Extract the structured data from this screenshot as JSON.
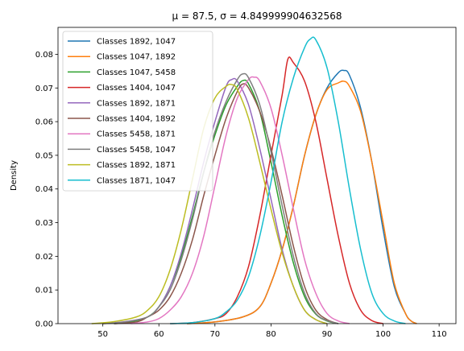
{
  "chart_data": {
    "type": "line",
    "title": "μ = 87.5, σ = 4.849999904632568",
    "xlabel": "",
    "ylabel": "Density",
    "xlim": [
      42,
      113
    ],
    "ylim": [
      0,
      0.088
    ],
    "xticks": [
      50,
      60,
      70,
      80,
      90,
      100,
      110
    ],
    "yticks": [
      0.0,
      0.01,
      0.02,
      0.03,
      0.04,
      0.05,
      0.06,
      0.07,
      0.08
    ],
    "ytick_labels": [
      "0.00",
      "0.01",
      "0.02",
      "0.03",
      "0.04",
      "0.05",
      "0.06",
      "0.07",
      "0.08"
    ],
    "grid": false,
    "legend_position": "top-left",
    "series": [
      {
        "name": "Classes 1892, 1047",
        "color": "#1f77b4",
        "points": [
          [
            65,
            0.0
          ],
          [
            70,
            0.0005
          ],
          [
            75,
            0.002
          ],
          [
            78,
            0.005
          ],
          [
            80,
            0.012
          ],
          [
            82,
            0.022
          ],
          [
            84,
            0.035
          ],
          [
            86,
            0.05
          ],
          [
            88,
            0.062
          ],
          [
            90,
            0.07
          ],
          [
            92,
            0.0745
          ],
          [
            93,
            0.0752
          ],
          [
            94,
            0.0738
          ],
          [
            96,
            0.064
          ],
          [
            98,
            0.048
          ],
          [
            100,
            0.028
          ],
          [
            102,
            0.011
          ],
          [
            104,
            0.003
          ],
          [
            105,
            0.0008
          ],
          [
            106,
            0.0
          ]
        ]
      },
      {
        "name": "Classes 1047, 1892",
        "color": "#ff7f0e",
        "points": [
          [
            65,
            0.0
          ],
          [
            70,
            0.0005
          ],
          [
            75,
            0.002
          ],
          [
            78,
            0.005
          ],
          [
            80,
            0.012
          ],
          [
            82,
            0.022
          ],
          [
            84,
            0.035
          ],
          [
            86,
            0.05
          ],
          [
            88,
            0.062
          ],
          [
            90,
            0.0695
          ],
          [
            92,
            0.0715
          ],
          [
            93,
            0.072
          ],
          [
            94,
            0.0705
          ],
          [
            96,
            0.063
          ],
          [
            98,
            0.048
          ],
          [
            100,
            0.03
          ],
          [
            102,
            0.012
          ],
          [
            104,
            0.003
          ],
          [
            105,
            0.0008
          ],
          [
            106,
            0.0
          ]
        ]
      },
      {
        "name": "Classes 1047, 5458",
        "color": "#2ca02c",
        "points": [
          [
            52,
            0.0
          ],
          [
            55,
            0.0005
          ],
          [
            58,
            0.002
          ],
          [
            60,
            0.005
          ],
          [
            62,
            0.011
          ],
          [
            64,
            0.02
          ],
          [
            66,
            0.032
          ],
          [
            68,
            0.045
          ],
          [
            70,
            0.056
          ],
          [
            72,
            0.065
          ],
          [
            74,
            0.0705
          ],
          [
            75,
            0.0722
          ],
          [
            76,
            0.0712
          ],
          [
            78,
            0.063
          ],
          [
            80,
            0.048
          ],
          [
            82,
            0.032
          ],
          [
            84,
            0.018
          ],
          [
            86,
            0.008
          ],
          [
            88,
            0.0028
          ],
          [
            90,
            0.0008
          ],
          [
            92,
            0.0
          ]
        ]
      },
      {
        "name": "Classes 1404, 1047",
        "color": "#d62728",
        "points": [
          [
            62,
            0.0
          ],
          [
            66,
            0.0003
          ],
          [
            70,
            0.0015
          ],
          [
            72,
            0.003
          ],
          [
            74,
            0.008
          ],
          [
            76,
            0.017
          ],
          [
            78,
            0.032
          ],
          [
            80,
            0.05
          ],
          [
            82,
            0.068
          ],
          [
            83,
            0.0785
          ],
          [
            84,
            0.0775
          ],
          [
            86,
            0.072
          ],
          [
            88,
            0.06
          ],
          [
            90,
            0.043
          ],
          [
            92,
            0.026
          ],
          [
            94,
            0.012
          ],
          [
            96,
            0.004
          ],
          [
            98,
            0.0009
          ],
          [
            100,
            0.0
          ]
        ]
      },
      {
        "name": "Classes 1892, 1871",
        "color": "#9467bd",
        "points": [
          [
            50,
            0.0
          ],
          [
            54,
            0.0006
          ],
          [
            58,
            0.002
          ],
          [
            60,
            0.005
          ],
          [
            62,
            0.011
          ],
          [
            64,
            0.021
          ],
          [
            66,
            0.034
          ],
          [
            68,
            0.048
          ],
          [
            70,
            0.06
          ],
          [
            72,
            0.0705
          ],
          [
            73,
            0.0725
          ],
          [
            74,
            0.072
          ],
          [
            76,
            0.065
          ],
          [
            78,
            0.052
          ],
          [
            80,
            0.037
          ],
          [
            82,
            0.022
          ],
          [
            84,
            0.011
          ],
          [
            86,
            0.004
          ],
          [
            88,
            0.0012
          ],
          [
            90,
            0.0
          ]
        ]
      },
      {
        "name": "Classes 1404, 1892",
        "color": "#8c564b",
        "points": [
          [
            52,
            0.0
          ],
          [
            56,
            0.0005
          ],
          [
            58,
            0.002
          ],
          [
            60,
            0.004
          ],
          [
            62,
            0.008
          ],
          [
            64,
            0.015
          ],
          [
            66,
            0.025
          ],
          [
            68,
            0.038
          ],
          [
            70,
            0.05
          ],
          [
            72,
            0.061
          ],
          [
            74,
            0.069
          ],
          [
            75,
            0.0712
          ],
          [
            76,
            0.07
          ],
          [
            78,
            0.063
          ],
          [
            80,
            0.052
          ],
          [
            82,
            0.038
          ],
          [
            84,
            0.023
          ],
          [
            86,
            0.011
          ],
          [
            88,
            0.004
          ],
          [
            90,
            0.0012
          ],
          [
            92,
            0.0
          ]
        ]
      },
      {
        "name": "Classes 5458, 1871",
        "color": "#e377c2",
        "points": [
          [
            55,
            0.0
          ],
          [
            58,
            0.0005
          ],
          [
            60,
            0.0015
          ],
          [
            62,
            0.004
          ],
          [
            64,
            0.008
          ],
          [
            66,
            0.015
          ],
          [
            68,
            0.026
          ],
          [
            70,
            0.041
          ],
          [
            72,
            0.056
          ],
          [
            74,
            0.067
          ],
          [
            76,
            0.0725
          ],
          [
            77,
            0.0732
          ],
          [
            78,
            0.072
          ],
          [
            80,
            0.064
          ],
          [
            82,
            0.05
          ],
          [
            84,
            0.034
          ],
          [
            86,
            0.019
          ],
          [
            88,
            0.009
          ],
          [
            90,
            0.003
          ],
          [
            92,
            0.0008
          ],
          [
            94,
            0.0
          ]
        ]
      },
      {
        "name": "Classes 5458, 1047",
        "color": "#7f7f7f",
        "points": [
          [
            50,
            0.0
          ],
          [
            54,
            0.0005
          ],
          [
            58,
            0.002
          ],
          [
            60,
            0.005
          ],
          [
            62,
            0.01
          ],
          [
            64,
            0.019
          ],
          [
            66,
            0.031
          ],
          [
            68,
            0.045
          ],
          [
            70,
            0.057
          ],
          [
            72,
            0.066
          ],
          [
            74,
            0.0725
          ],
          [
            75,
            0.0742
          ],
          [
            76,
            0.073
          ],
          [
            78,
            0.065
          ],
          [
            80,
            0.051
          ],
          [
            82,
            0.035
          ],
          [
            84,
            0.02
          ],
          [
            86,
            0.009
          ],
          [
            88,
            0.003
          ],
          [
            90,
            0.0009
          ],
          [
            92,
            0.0
          ]
        ]
      },
      {
        "name": "Classes 1892, 1871",
        "color": "#bcbd22",
        "points": [
          [
            48,
            0.0
          ],
          [
            52,
            0.0006
          ],
          [
            56,
            0.002
          ],
          [
            58,
            0.004
          ],
          [
            60,
            0.008
          ],
          [
            62,
            0.016
          ],
          [
            64,
            0.028
          ],
          [
            66,
            0.043
          ],
          [
            68,
            0.058
          ],
          [
            70,
            0.067
          ],
          [
            72,
            0.0705
          ],
          [
            73,
            0.071
          ],
          [
            74,
            0.0695
          ],
          [
            76,
            0.061
          ],
          [
            78,
            0.048
          ],
          [
            80,
            0.034
          ],
          [
            82,
            0.021
          ],
          [
            84,
            0.011
          ],
          [
            86,
            0.004
          ],
          [
            88,
            0.0012
          ],
          [
            90,
            0.0
          ]
        ]
      },
      {
        "name": "Classes 1871, 1047",
        "color": "#17becf",
        "points": [
          [
            62,
            0.0
          ],
          [
            66,
            0.0003
          ],
          [
            70,
            0.0015
          ],
          [
            72,
            0.0035
          ],
          [
            74,
            0.007
          ],
          [
            76,
            0.014
          ],
          [
            78,
            0.026
          ],
          [
            80,
            0.042
          ],
          [
            82,
            0.06
          ],
          [
            84,
            0.073
          ],
          [
            86,
            0.082
          ],
          [
            87,
            0.0845
          ],
          [
            88,
            0.0843
          ],
          [
            90,
            0.076
          ],
          [
            92,
            0.06
          ],
          [
            94,
            0.04
          ],
          [
            96,
            0.022
          ],
          [
            98,
            0.009
          ],
          [
            100,
            0.003
          ],
          [
            102,
            0.0008
          ],
          [
            104,
            0.0
          ]
        ]
      }
    ]
  }
}
